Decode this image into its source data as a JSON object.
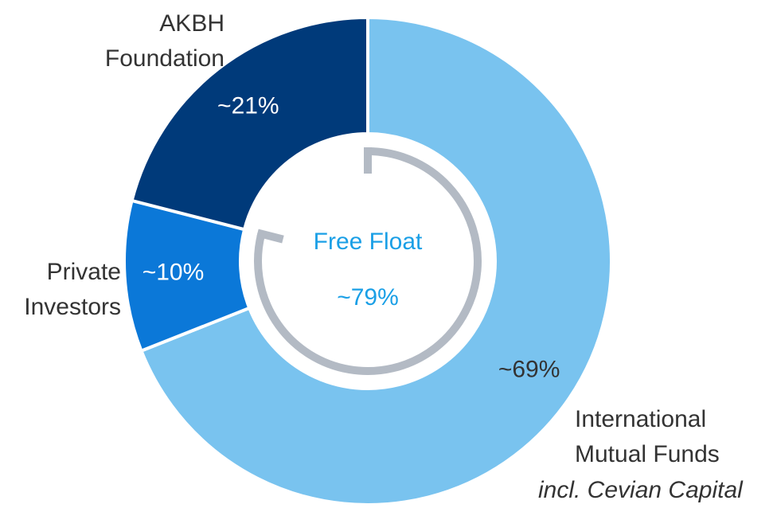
{
  "chart_data": {
    "type": "donut",
    "categories": [
      "International Mutual Funds",
      "Private Investors",
      "AKBH Foundation"
    ],
    "values": [
      69,
      10,
      21
    ],
    "value_labels": [
      "~69%",
      "~10%",
      "~21%"
    ],
    "colors": [
      "#79c3ef",
      "#0b78d8",
      "#003a7a"
    ],
    "annotation": "incl. Cevian Capital",
    "free_float": {
      "label": "Free Float",
      "value": 79,
      "value_label": "~79%",
      "color": "#b3bac4"
    }
  }
}
